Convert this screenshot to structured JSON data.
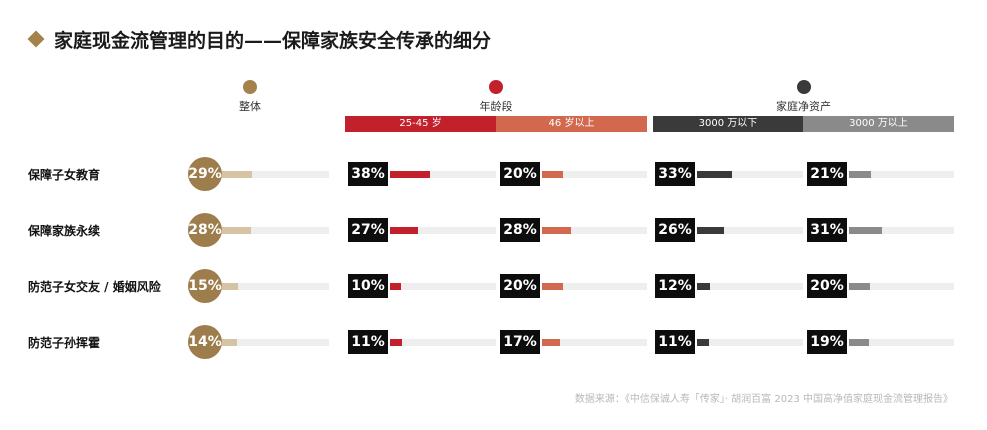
{
  "title": "家庭现金流管理的目的——保障家族安全传承的细分",
  "groups": {
    "overall": {
      "label": "整体",
      "dot_color": "#a5814c"
    },
    "age": {
      "label": "年龄段",
      "dot_color": "#c2202a",
      "subs": [
        "25-45 岁",
        "46 岁以上"
      ]
    },
    "assets": {
      "label": "家庭净资产",
      "dot_color": "#3a3a3a",
      "subs": [
        "3000 万以下",
        "3000 万以上"
      ]
    }
  },
  "colors": {
    "overall": "#d5c3a4",
    "age_25_45": "#c2202a",
    "age_46_plus": "#d2694f",
    "asset_below": "#3a3a3a",
    "asset_above": "#8a8a8a"
  },
  "chart_data": {
    "type": "bar",
    "categories": [
      "保障子女教育",
      "保障家族永续",
      "防范子女交友 / 婚姻风险",
      "防范子孙挥霍"
    ],
    "series": [
      {
        "name": "整体",
        "values": [
          29,
          28,
          15,
          14
        ]
      },
      {
        "name": "25-45 岁",
        "values": [
          38,
          27,
          10,
          11
        ]
      },
      {
        "name": "46 岁以上",
        "values": [
          20,
          28,
          20,
          17
        ]
      },
      {
        "name": "3000 万以下",
        "values": [
          33,
          26,
          12,
          11
        ]
      },
      {
        "name": "3000 万以上",
        "values": [
          21,
          31,
          20,
          19
        ]
      }
    ],
    "unit": "%",
    "max": 100
  },
  "source": "数据来源：《中信保诚人寿「传家」· 胡润百富 2023 中国高净值家庭现金流管理报告》"
}
